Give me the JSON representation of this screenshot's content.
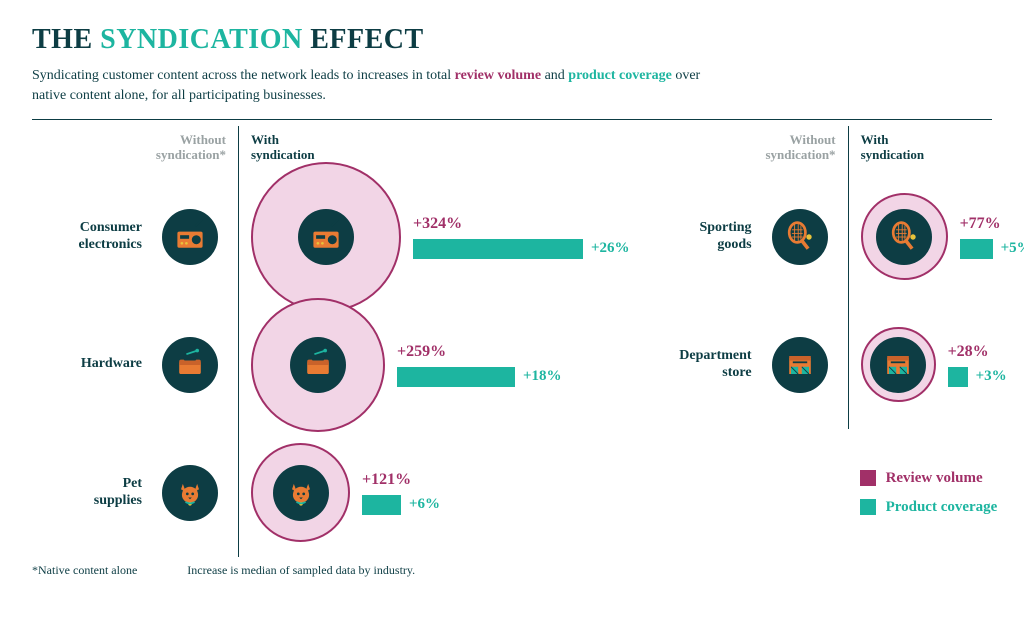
{
  "title": {
    "pre": "THE ",
    "accent": "SYNDICATION",
    "post": " EFFECT"
  },
  "subtitle": {
    "part1": "Syndicating customer content across the network leads to increases in total ",
    "emVolume": "review volume",
    "part2": " and ",
    "emCoverage": "product coverage",
    "part3": " over native content alone, for all participating businesses."
  },
  "columns": {
    "without": "Without syndication*",
    "with": "With syndication"
  },
  "colors": {
    "teal": "#1db5a0",
    "magenta": "#a13068",
    "darkTeal": "#0d3d44",
    "halo": "#f2d5e6",
    "orange": "#e87b33",
    "yellow": "#e8c33b"
  },
  "chart": {
    "baseIconDiameter": 56,
    "haloMin": 68,
    "haloMax": 150,
    "coverageMaxBarPx": 170
  },
  "rowsLeft": [
    {
      "label": "Consumer electronics",
      "icon": "radio",
      "volumePct": 324,
      "coveragePct": 26
    },
    {
      "label": "Hardware",
      "icon": "toolbox",
      "volumePct": 259,
      "coveragePct": 18
    },
    {
      "label": "Pet supplies",
      "icon": "cat",
      "volumePct": 121,
      "coveragePct": 6
    }
  ],
  "rowsRight": [
    {
      "label": "Sporting goods",
      "icon": "racket",
      "volumePct": 77,
      "coveragePct": 5
    },
    {
      "label": "Department store",
      "icon": "store",
      "volumePct": 28,
      "coveragePct": 3
    }
  ],
  "legend": {
    "volume": "Review volume",
    "coverage": "Product coverage"
  },
  "footnotes": {
    "a": "*Native content alone",
    "b": "Increase is median of sampled data by industry."
  }
}
